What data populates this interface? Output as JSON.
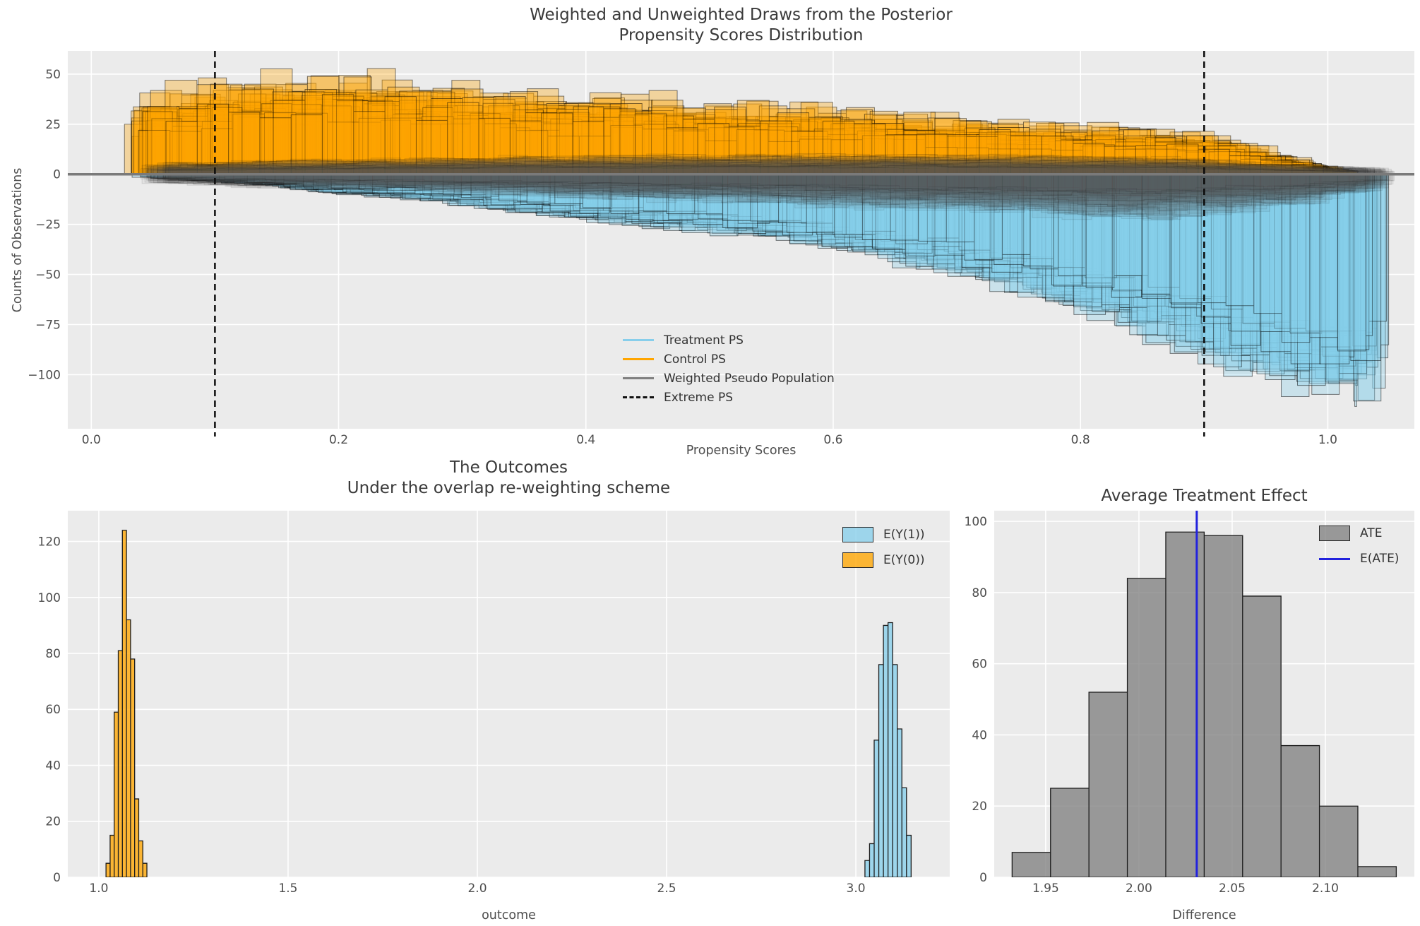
{
  "figure": {
    "bg": "#ffffff",
    "axes_bg": "#EBEBEB",
    "grid_color": "#ffffff",
    "tick_color": "#4d4d4d",
    "title_color": "#3a3a3a"
  },
  "chart_data": [
    {
      "id": "posterior-ps",
      "type": "histogram-ensemble",
      "title_lines": [
        "Weighted and Unweighted Draws from the Posterior",
        "Propensity Scores Distribution"
      ],
      "xlabel": "Propensity Scores",
      "ylabel": "Counts of Observations",
      "xlim": [
        -0.019,
        1.07
      ],
      "ylim": [
        -127,
        61.6
      ],
      "xticks": [
        {
          "v": 0.0,
          "label": "0.0"
        },
        {
          "v": 0.2,
          "label": "0.2"
        },
        {
          "v": 0.4,
          "label": "0.4"
        },
        {
          "v": 0.6,
          "label": "0.6"
        },
        {
          "v": 0.8,
          "label": "0.8"
        },
        {
          "v": 1.0,
          "label": "1.0"
        }
      ],
      "yticks": [
        {
          "v": 50,
          "label": "50"
        },
        {
          "v": 25,
          "label": "25"
        },
        {
          "v": 0,
          "label": "0"
        },
        {
          "v": -25,
          "label": "−25"
        },
        {
          "v": -50,
          "label": "−50"
        },
        {
          "v": -75,
          "label": "−75"
        },
        {
          "v": -100,
          "label": "−100"
        }
      ],
      "grid": true,
      "zero_line": {
        "y": 0,
        "color": "#7a7a7a",
        "width": 3.5
      },
      "extreme_ps_lines": {
        "x": [
          0.1,
          0.9
        ],
        "color": "#0b0b0b",
        "width": 2.5,
        "dash": "9 6"
      },
      "legend": [
        {
          "label": "Treatment PS",
          "swatch": "line",
          "color": "#87CEEB"
        },
        {
          "label": "Control PS",
          "swatch": "line",
          "color": "#FFA500"
        },
        {
          "label": "Weighted Pseudo Population",
          "swatch": "line",
          "color": "#808080"
        },
        {
          "label": "Extreme PS",
          "swatch": "dashed-line",
          "color": "#111111"
        }
      ],
      "ensemble": {
        "seed": 11,
        "bin_width": 0.024,
        "series": [
          {
            "name": "Control PS",
            "color": "#FFA500",
            "n_draws": 30,
            "fill_alpha": 0.33,
            "range": [
              0.028,
              1.01
            ],
            "amp": [
              0.72,
              1.26
            ],
            "noise": [
              0.82,
              1.18
            ],
            "x": [
              0.03,
              0.06,
              0.1,
              0.14,
              0.18,
              0.22,
              0.26,
              0.3,
              0.34,
              0.38,
              0.42,
              0.46,
              0.5,
              0.54,
              0.58,
              0.62,
              0.66,
              0.7,
              0.74,
              0.78,
              0.82,
              0.86,
              0.9,
              0.94,
              0.98,
              1.01
            ],
            "mean": [
              30,
              32,
              34,
              36,
              38,
              37,
              35,
              33,
              32,
              31,
              30,
              29,
              27,
              26,
              25,
              24,
              23,
              21,
              20,
              19,
              18,
              17,
              15,
              11,
              5,
              2
            ]
          },
          {
            "name": "Treatment PS",
            "color": "#87CEEB",
            "n_draws": 30,
            "fill_alpha": 0.33,
            "range": [
              0.04,
              1.035
            ],
            "amp": [
              0.78,
              1.13
            ],
            "noise": [
              0.9,
              1.1
            ],
            "x": [
              0.05,
              0.1,
              0.15,
              0.2,
              0.25,
              0.3,
              0.35,
              0.4,
              0.45,
              0.5,
              0.55,
              0.6,
              0.65,
              0.7,
              0.75,
              0.8,
              0.85,
              0.9,
              0.95,
              1.0,
              1.035
            ],
            "mean": [
              -1.5,
              -3,
              -5,
              -8,
              -10,
              -13,
              -16,
              -19,
              -22,
              -25,
              -28,
              -32,
              -37,
              -43,
              -50,
              -58,
              -67,
              -77,
              -87,
              -94,
              -97
            ]
          }
        ],
        "pseudo_band": {
          "name": "Weighted Pseudo Population",
          "color": "#5a5a5a",
          "n_draws": 35,
          "fill_alpha": 0.06,
          "range": [
            0.04,
            1.03
          ],
          "amp": [
            0.5,
            1.3
          ],
          "noise": [
            0.8,
            1.2
          ],
          "x": [
            0.04,
            0.15,
            0.3,
            0.5,
            0.7,
            0.85,
            0.95,
            1.03
          ],
          "top": [
            4,
            5,
            6,
            7,
            7,
            6,
            4,
            2
          ],
          "bottom": [
            -3,
            -5,
            -7,
            -10,
            -13,
            -16,
            -12,
            -5
          ]
        }
      }
    },
    {
      "id": "outcomes",
      "type": "histogram",
      "title_lines": [
        "The Outcomes",
        "Under the overlap re-weighting scheme"
      ],
      "xlabel": "outcome",
      "xlim": [
        0.918,
        3.248
      ],
      "ylim": [
        0,
        131
      ],
      "xticks": [
        {
          "v": 1.0,
          "label": "1.0"
        },
        {
          "v": 1.5,
          "label": "1.5"
        },
        {
          "v": 2.0,
          "label": "2.0"
        },
        {
          "v": 2.5,
          "label": "2.5"
        },
        {
          "v": 3.0,
          "label": "3.0"
        }
      ],
      "yticks": [
        {
          "v": 0,
          "label": "0"
        },
        {
          "v": 20,
          "label": "20"
        },
        {
          "v": 40,
          "label": "40"
        },
        {
          "v": 60,
          "label": "60"
        },
        {
          "v": 80,
          "label": "80"
        },
        {
          "v": 100,
          "label": "100"
        },
        {
          "v": 120,
          "label": "120"
        }
      ],
      "grid": true,
      "legend": [
        {
          "label": "E(Y(1))",
          "swatch": "patch",
          "color": "#87CEEB"
        },
        {
          "label": "E(Y(0))",
          "swatch": "patch",
          "color": "#FFA500"
        }
      ],
      "series": [
        {
          "name": "E(Y(1))",
          "color": "#87CEEB",
          "bin_start": 3.024,
          "bin_width": 0.0122,
          "counts": [
            6,
            12,
            49,
            76,
            90,
            91,
            76,
            53,
            32,
            15
          ]
        },
        {
          "name": "E(Y(0))",
          "color": "#FFA500",
          "bin_start": 1.019,
          "bin_width": 0.0108,
          "counts": [
            5,
            15,
            59,
            81,
            124,
            92,
            78,
            28,
            13,
            5
          ]
        }
      ]
    },
    {
      "id": "ate",
      "type": "histogram",
      "title_lines": [
        "Average Treatment Effect"
      ],
      "xlabel": "Difference",
      "xlim": [
        1.9224,
        2.1477
      ],
      "ylim": [
        0,
        103
      ],
      "xticks": [
        {
          "v": 1.95,
          "label": "1.95"
        },
        {
          "v": 2.0,
          "label": "2.00"
        },
        {
          "v": 2.05,
          "label": "2.05"
        },
        {
          "v": 2.1,
          "label": "2.10"
        }
      ],
      "yticks": [
        {
          "v": 0,
          "label": "0"
        },
        {
          "v": 20,
          "label": "20"
        },
        {
          "v": 40,
          "label": "40"
        },
        {
          "v": 60,
          "label": "60"
        },
        {
          "v": 80,
          "label": "80"
        },
        {
          "v": 100,
          "label": "100"
        }
      ],
      "grid": true,
      "legend": [
        {
          "label": "ATE",
          "swatch": "patch",
          "color": "#808080"
        },
        {
          "label": "E(ATE)",
          "swatch": "line",
          "color": "#2222DD"
        }
      ],
      "series": [
        {
          "name": "ATE",
          "color": "#808080",
          "bin_start": 1.932,
          "bin_width": 0.0206,
          "counts": [
            7,
            25,
            52,
            84,
            97,
            96,
            79,
            37,
            20,
            3
          ]
        }
      ],
      "eate_line": {
        "label": "E(ATE)",
        "value": 2.031,
        "color": "#2222DD",
        "width": 3
      }
    }
  ]
}
